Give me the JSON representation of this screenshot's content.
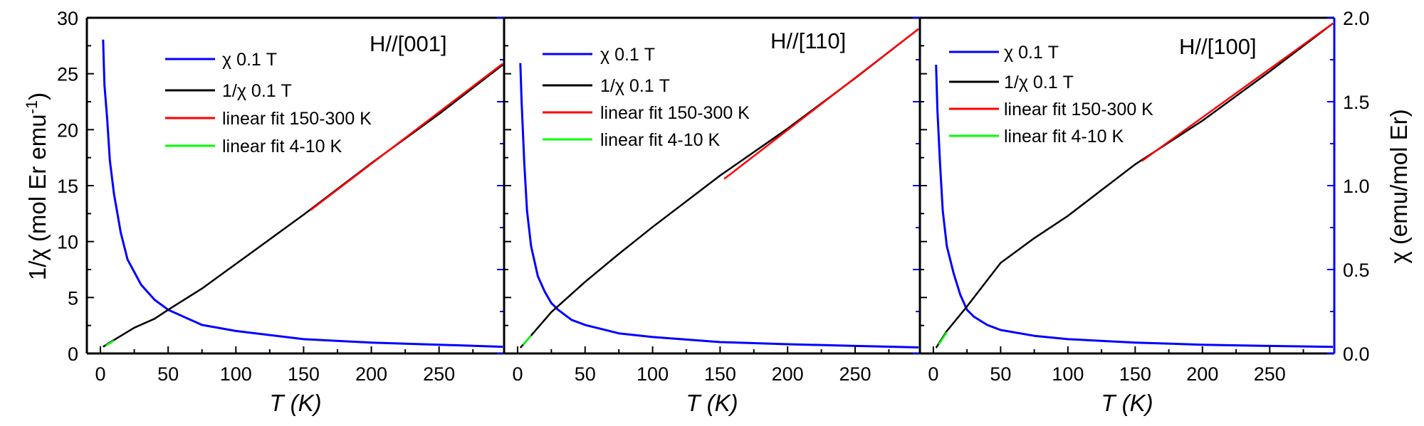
{
  "axes": {
    "xlabel": "T (K)",
    "ylabel_left": {
      "prefix": "1/χ (mol Er emu",
      "sup": "-1",
      "suffix": ")"
    },
    "ylabel_right": "χ (emu/mol Er)",
    "xlim": [
      -10,
      298
    ],
    "ylim_left": [
      0,
      30
    ],
    "ylim_right": [
      0,
      2.0
    ],
    "x_ticks": [
      "0",
      "50",
      "100",
      "150",
      "200",
      "250"
    ],
    "left_ticks": [
      "0",
      "5",
      "10",
      "15",
      "20",
      "25",
      "30"
    ],
    "right_ticks": [
      "0.0",
      "0.5",
      "1.0",
      "1.5",
      "2.0"
    ],
    "axis_color_right": "#0000ff"
  },
  "legend": [
    "χ   0.1 T",
    "1/χ 0.1 T",
    "linear fit 150-300 K",
    "linear fit 4-10 K"
  ],
  "chart_data": [
    {
      "type": "line",
      "title": "H//[001]",
      "series": [
        {
          "name": "χ   0.1 T",
          "axis": "right",
          "color": "#0000ff",
          "x": [
            2,
            3,
            5,
            7,
            10,
            15,
            20,
            30,
            40,
            50,
            75,
            100,
            150,
            200,
            250,
            297
          ],
          "y": [
            1.87,
            1.6,
            1.4,
            1.15,
            0.95,
            0.72,
            0.56,
            0.41,
            0.32,
            0.26,
            0.17,
            0.134,
            0.085,
            0.065,
            0.052,
            0.04
          ]
        },
        {
          "name": "1/χ 0.1 T",
          "axis": "left",
          "color": "#000000",
          "x": [
            2,
            10,
            25,
            40,
            50,
            75,
            100,
            125,
            150,
            200,
            250,
            297
          ],
          "y": [
            0.6,
            1.2,
            2.3,
            3.1,
            3.9,
            5.8,
            8.0,
            10.2,
            12.4,
            17.0,
            21.4,
            25.8
          ]
        },
        {
          "name": "linear fit 150-300 K",
          "axis": "left",
          "color": "#ff0000",
          "x": [
            155,
            297
          ],
          "y": [
            12.8,
            25.9
          ]
        },
        {
          "name": "linear fit 4-10 K",
          "axis": "left",
          "color": "#00ff00",
          "x": [
            4,
            10
          ],
          "y": [
            0.7,
            1.15
          ]
        }
      ]
    },
    {
      "type": "line",
      "title": "H//[110]",
      "series": [
        {
          "name": "χ   0.1 T",
          "axis": "right",
          "color": "#0000ff",
          "x": [
            2,
            3,
            5,
            7,
            10,
            15,
            20,
            25,
            30,
            40,
            50,
            75,
            100,
            150,
            200,
            250,
            297
          ],
          "y": [
            1.73,
            1.5,
            1.13,
            0.85,
            0.64,
            0.46,
            0.37,
            0.3,
            0.26,
            0.2,
            0.17,
            0.12,
            0.098,
            0.068,
            0.055,
            0.045,
            0.036
          ]
        },
        {
          "name": "1/χ 0.1 T",
          "axis": "left",
          "color": "#000000",
          "x": [
            2,
            10,
            25,
            50,
            75,
            100,
            125,
            150,
            200,
            250,
            297
          ],
          "y": [
            0.5,
            1.6,
            3.7,
            6.4,
            8.9,
            11.3,
            13.6,
            15.9,
            20.1,
            24.6,
            29.0
          ]
        },
        {
          "name": "linear fit 150-300 K",
          "axis": "left",
          "color": "#ff0000",
          "x": [
            153,
            297
          ],
          "y": [
            15.6,
            29.0
          ]
        },
        {
          "name": "linear fit 4-10 K",
          "axis": "left",
          "color": "#00ff00",
          "x": [
            4,
            10
          ],
          "y": [
            0.8,
            1.6
          ]
        }
      ]
    },
    {
      "type": "line",
      "title": "H//[100]",
      "series": [
        {
          "name": "χ   0.1 T",
          "axis": "right",
          "color": "#0000ff",
          "x": [
            2,
            3,
            5,
            7,
            10,
            15,
            20,
            25,
            30,
            40,
            50,
            75,
            100,
            150,
            200,
            250,
            297
          ],
          "y": [
            1.72,
            1.45,
            1.13,
            0.85,
            0.64,
            0.48,
            0.35,
            0.26,
            0.22,
            0.17,
            0.14,
            0.105,
            0.085,
            0.065,
            0.052,
            0.045,
            0.039
          ]
        },
        {
          "name": "1/χ 0.1 T",
          "axis": "left",
          "color": "#000000",
          "x": [
            2,
            10,
            25,
            50,
            75,
            100,
            125,
            150,
            200,
            250,
            297
          ],
          "y": [
            0.5,
            2.0,
            4.2,
            8.1,
            10.3,
            12.3,
            14.6,
            16.9,
            20.8,
            25.2,
            29.5
          ]
        },
        {
          "name": "linear fit 150-300 K",
          "axis": "left",
          "color": "#ff0000",
          "x": [
            155,
            297
          ],
          "y": [
            17.2,
            29.5
          ]
        },
        {
          "name": "linear fit 4-10 K",
          "axis": "left",
          "color": "#00ff00",
          "x": [
            4,
            10
          ],
          "y": [
            0.8,
            1.9
          ]
        }
      ]
    }
  ]
}
